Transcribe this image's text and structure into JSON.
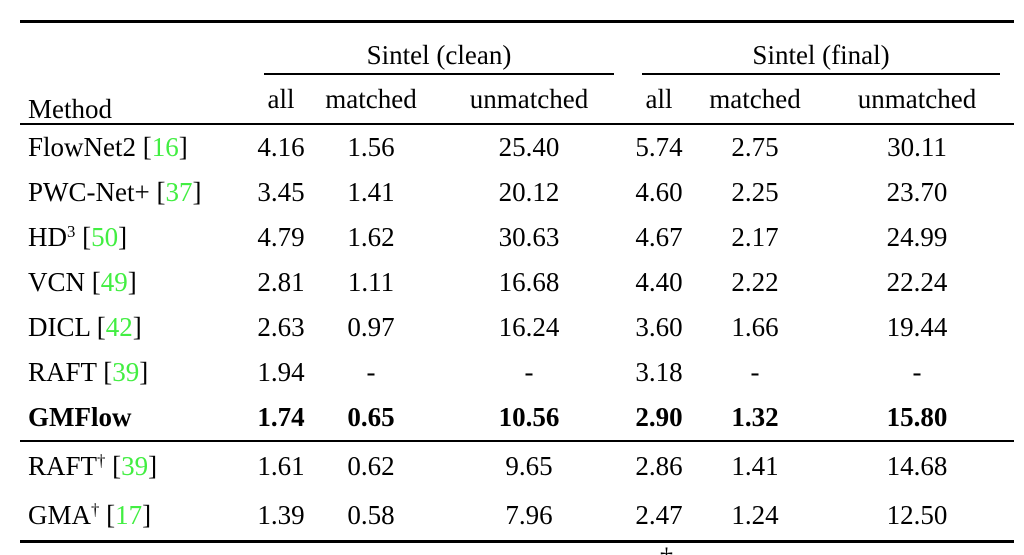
{
  "colors": {
    "text": "#000000",
    "rule": "#000000",
    "cite_green": "#42ee42"
  },
  "header": {
    "method_label": "Method",
    "groups": [
      {
        "label": "Sintel (clean)",
        "subcolumns": [
          "all",
          "matched",
          "unmatched"
        ]
      },
      {
        "label": "Sintel (final)",
        "subcolumns": [
          "all",
          "matched",
          "unmatched"
        ]
      }
    ]
  },
  "rows": [
    {
      "section": 1,
      "method": "FlowNet2",
      "sup": "",
      "cite": "16",
      "bold": false,
      "values": [
        "4.16",
        "1.56",
        "25.40",
        "5.74",
        "2.75",
        "30.11"
      ]
    },
    {
      "section": 1,
      "method": "PWC-Net+",
      "sup": "",
      "cite": "37",
      "bold": false,
      "values": [
        "3.45",
        "1.41",
        "20.12",
        "4.60",
        "2.25",
        "23.70"
      ]
    },
    {
      "section": 1,
      "method": "HD",
      "sup": "3",
      "cite": "50",
      "bold": false,
      "values": [
        "4.79",
        "1.62",
        "30.63",
        "4.67",
        "2.17",
        "24.99"
      ]
    },
    {
      "section": 1,
      "method": "VCN",
      "sup": "",
      "cite": "49",
      "bold": false,
      "values": [
        "2.81",
        "1.11",
        "16.68",
        "4.40",
        "2.22",
        "22.24"
      ]
    },
    {
      "section": 1,
      "method": "DICL",
      "sup": "",
      "cite": "42",
      "bold": false,
      "values": [
        "2.63",
        "0.97",
        "16.24",
        "3.60",
        "1.66",
        "19.44"
      ]
    },
    {
      "section": 1,
      "method": "RAFT",
      "sup": "",
      "cite": "39",
      "bold": false,
      "values": [
        "1.94",
        "-",
        "-",
        "3.18",
        "-",
        "-"
      ]
    },
    {
      "section": 1,
      "method": "GMFlow",
      "sup": "",
      "cite": "",
      "bold": true,
      "values": [
        "1.74",
        "0.65",
        "10.56",
        "2.90",
        "1.32",
        "15.80"
      ]
    },
    {
      "section": 2,
      "method": "RAFT",
      "sup": "†",
      "cite": "39",
      "bold": false,
      "values": [
        "1.61",
        "0.62",
        "9.65",
        "2.86",
        "1.41",
        "14.68"
      ]
    },
    {
      "section": 2,
      "method": "GMA",
      "sup": "†",
      "cite": "17",
      "bold": false,
      "values": [
        "1.39",
        "0.58",
        "7.96",
        "2.47",
        "1.24",
        "12.50"
      ]
    }
  ],
  "footnote_fragment": "†"
}
